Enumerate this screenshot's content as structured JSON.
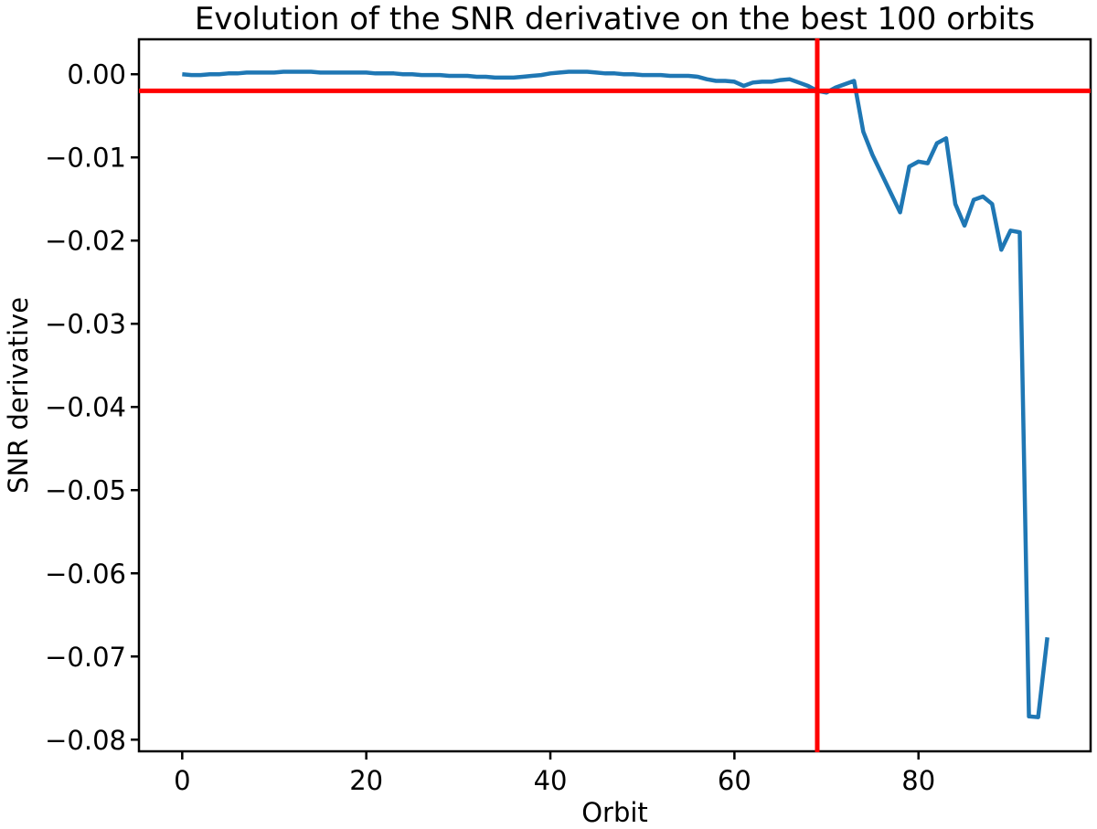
{
  "chart_data": {
    "type": "line",
    "title": "Evolution of the SNR derivative on the best 100 orbits",
    "xlabel": "Orbit",
    "ylabel": "SNR derivative",
    "grid": false,
    "legend": null,
    "xlim": [
      -4.7,
      98.7
    ],
    "ylim": [
      -0.0814,
      0.0042
    ],
    "x_ticks": {
      "values": [
        0,
        20,
        40,
        60,
        80
      ],
      "labels": [
        "0",
        "20",
        "40",
        "60",
        "80"
      ]
    },
    "y_ticks": {
      "values": [
        0.0,
        -0.01,
        -0.02,
        -0.03,
        -0.04,
        -0.05,
        -0.06,
        -0.07,
        -0.08
      ],
      "labels": [
        "0.00",
        "−0.01",
        "−0.02",
        "−0.03",
        "−0.04",
        "−0.05",
        "−0.06",
        "−0.07",
        "−0.08"
      ]
    },
    "series": [
      {
        "name": "snr-derivative",
        "color": "#1f77b4",
        "line_width": 4.5,
        "x_start": 0,
        "x_step": 1,
        "values": [
          0.0,
          -0.0001,
          -0.0001,
          0.0,
          0.0,
          0.0001,
          0.0001,
          0.0002,
          0.0002,
          0.0002,
          0.0002,
          0.0003,
          0.0003,
          0.0003,
          0.0003,
          0.0002,
          0.0002,
          0.0002,
          0.0002,
          0.0002,
          0.0002,
          0.0001,
          0.0001,
          0.0001,
          0.0,
          0.0,
          -0.0001,
          -0.0001,
          -0.0001,
          -0.0002,
          -0.0002,
          -0.0002,
          -0.0003,
          -0.0003,
          -0.0004,
          -0.0004,
          -0.0004,
          -0.0003,
          -0.0002,
          -0.0001,
          0.0001,
          0.0002,
          0.0003,
          0.0003,
          0.0003,
          0.0002,
          0.0001,
          0.0001,
          0.0,
          0.0,
          -0.0001,
          -0.0001,
          -0.0001,
          -0.0002,
          -0.0002,
          -0.0002,
          -0.0003,
          -0.0006,
          -0.0008,
          -0.0008,
          -0.0009,
          -0.0014,
          -0.001,
          -0.0009,
          -0.0009,
          -0.0007,
          -0.0006,
          -0.001,
          -0.0014,
          -0.002,
          -0.0022,
          -0.0016,
          -0.0012,
          -0.0008,
          -0.0069,
          -0.0097,
          -0.012,
          -0.0143,
          -0.0166,
          -0.0111,
          -0.0105,
          -0.0107,
          -0.0083,
          -0.0077,
          -0.0156,
          -0.0182,
          -0.0151,
          -0.0147,
          -0.0156,
          -0.0211,
          -0.0188,
          -0.019,
          -0.0772,
          -0.0773,
          -0.0677
        ]
      }
    ],
    "reference_lines": {
      "horizontal": {
        "value": -0.002,
        "color": "#ff0000",
        "line_width": 5
      },
      "vertical": {
        "value": 69,
        "color": "#ff0000",
        "line_width": 5
      }
    },
    "frame_color": "#000000"
  }
}
